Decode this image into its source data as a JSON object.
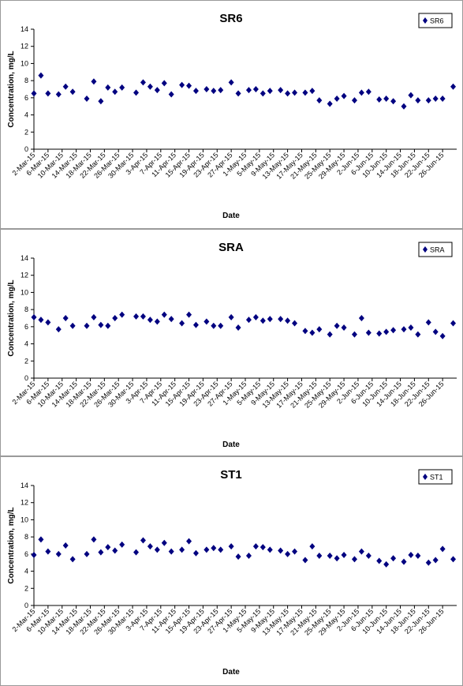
{
  "chart_data": [
    {
      "type": "scatter",
      "title": "SR6",
      "xlabel": "Date",
      "ylabel": "Concentration, mg/L",
      "ylim": [
        0,
        14
      ],
      "yticks": [
        "0",
        "2",
        "4",
        "6",
        "8",
        "10",
        "12",
        "14"
      ],
      "legend_position": "top-right",
      "color": "#000080",
      "grid": false,
      "series": [
        {
          "name": "SR6",
          "x": [
            "2015-03-02",
            "2015-03-04",
            "2015-03-06",
            "2015-03-09",
            "2015-03-11",
            "2015-03-13",
            "2015-03-17",
            "2015-03-19",
            "2015-03-21",
            "2015-03-23",
            "2015-03-25",
            "2015-03-27",
            "2015-03-31",
            "2015-04-02",
            "2015-04-04",
            "2015-04-06",
            "2015-04-08",
            "2015-04-10",
            "2015-04-13",
            "2015-04-15",
            "2015-04-17",
            "2015-04-20",
            "2015-04-22",
            "2015-04-24",
            "2015-04-27",
            "2015-04-29",
            "2015-05-02",
            "2015-05-04",
            "2015-05-06",
            "2015-05-08",
            "2015-05-11",
            "2015-05-13",
            "2015-05-15",
            "2015-05-18",
            "2015-05-20",
            "2015-05-22",
            "2015-05-25",
            "2015-05-27",
            "2015-05-29",
            "2015-06-01",
            "2015-06-03",
            "2015-06-05",
            "2015-06-08",
            "2015-06-10",
            "2015-06-12",
            "2015-06-15",
            "2015-06-17",
            "2015-06-19",
            "2015-06-22",
            "2015-06-24",
            "2015-06-26",
            "2015-06-29"
          ],
          "y": [
            6.5,
            8.6,
            6.5,
            6.4,
            7.3,
            6.7,
            5.9,
            7.9,
            5.6,
            7.2,
            6.7,
            7.2,
            6.6,
            7.8,
            7.3,
            6.9,
            7.7,
            6.4,
            7.5,
            7.4,
            6.8,
            7.0,
            6.8,
            6.9,
            7.8,
            6.5,
            6.9,
            7.0,
            6.5,
            6.8,
            6.9,
            6.5,
            6.6,
            6.6,
            6.8,
            5.7,
            5.3,
            5.9,
            6.2,
            5.7,
            6.6,
            6.7,
            5.8,
            5.9,
            5.6,
            5.0,
            6.3,
            5.7,
            5.7,
            5.9,
            5.9,
            7.3
          ]
        }
      ]
    },
    {
      "type": "scatter",
      "title": "SRA",
      "xlabel": "Date",
      "ylabel": "Concentration, mg/L",
      "ylim": [
        0,
        14
      ],
      "yticks": [
        "0",
        "2",
        "4",
        "6",
        "8",
        "10",
        "12",
        "14"
      ],
      "legend_position": "top-right",
      "color": "#000080",
      "grid": false,
      "series": [
        {
          "name": "SRA",
          "x": [
            "2015-03-02",
            "2015-03-04",
            "2015-03-06",
            "2015-03-09",
            "2015-03-11",
            "2015-03-13",
            "2015-03-17",
            "2015-03-19",
            "2015-03-21",
            "2015-03-23",
            "2015-03-25",
            "2015-03-27",
            "2015-03-31",
            "2015-04-02",
            "2015-04-04",
            "2015-04-06",
            "2015-04-08",
            "2015-04-10",
            "2015-04-13",
            "2015-04-15",
            "2015-04-17",
            "2015-04-20",
            "2015-04-22",
            "2015-04-24",
            "2015-04-27",
            "2015-04-29",
            "2015-05-02",
            "2015-05-04",
            "2015-05-06",
            "2015-05-08",
            "2015-05-11",
            "2015-05-13",
            "2015-05-15",
            "2015-05-18",
            "2015-05-20",
            "2015-05-22",
            "2015-05-25",
            "2015-05-27",
            "2015-05-29",
            "2015-06-01",
            "2015-06-03",
            "2015-06-05",
            "2015-06-08",
            "2015-06-10",
            "2015-06-12",
            "2015-06-15",
            "2015-06-17",
            "2015-06-19",
            "2015-06-22",
            "2015-06-24",
            "2015-06-26",
            "2015-06-29"
          ],
          "y": [
            7.1,
            6.8,
            6.5,
            5.7,
            7.0,
            6.1,
            6.1,
            7.1,
            6.2,
            6.1,
            7.0,
            7.4,
            7.2,
            7.2,
            6.8,
            6.6,
            7.4,
            6.9,
            6.4,
            7.4,
            6.2,
            6.6,
            6.1,
            6.1,
            7.1,
            5.9,
            6.8,
            7.1,
            6.7,
            6.9,
            6.9,
            6.7,
            6.4,
            5.5,
            5.3,
            5.7,
            5.1,
            6.1,
            5.9,
            5.1,
            7.0,
            5.3,
            5.2,
            5.4,
            5.6,
            5.7,
            5.9,
            5.1,
            6.5,
            5.4,
            4.9,
            6.4
          ]
        }
      ]
    },
    {
      "type": "scatter",
      "title": "ST1",
      "xlabel": "Date",
      "ylabel": "Concentration, mg/L",
      "ylim": [
        0,
        14
      ],
      "yticks": [
        "0",
        "2",
        "4",
        "6",
        "8",
        "10",
        "12",
        "14"
      ],
      "legend_position": "top-right",
      "color": "#000080",
      "grid": false,
      "series": [
        {
          "name": "ST1",
          "x": [
            "2015-03-02",
            "2015-03-04",
            "2015-03-06",
            "2015-03-09",
            "2015-03-11",
            "2015-03-13",
            "2015-03-17",
            "2015-03-19",
            "2015-03-21",
            "2015-03-23",
            "2015-03-25",
            "2015-03-27",
            "2015-03-31",
            "2015-04-02",
            "2015-04-04",
            "2015-04-06",
            "2015-04-08",
            "2015-04-10",
            "2015-04-13",
            "2015-04-15",
            "2015-04-17",
            "2015-04-20",
            "2015-04-22",
            "2015-04-24",
            "2015-04-27",
            "2015-04-29",
            "2015-05-02",
            "2015-05-04",
            "2015-05-06",
            "2015-05-08",
            "2015-05-11",
            "2015-05-13",
            "2015-05-15",
            "2015-05-18",
            "2015-05-20",
            "2015-05-22",
            "2015-05-25",
            "2015-05-27",
            "2015-05-29",
            "2015-06-01",
            "2015-06-03",
            "2015-06-05",
            "2015-06-08",
            "2015-06-10",
            "2015-06-12",
            "2015-06-15",
            "2015-06-17",
            "2015-06-19",
            "2015-06-22",
            "2015-06-24",
            "2015-06-26",
            "2015-06-29"
          ],
          "y": [
            5.9,
            7.7,
            6.3,
            6.0,
            7.0,
            5.4,
            6.0,
            7.7,
            6.2,
            6.8,
            6.4,
            7.1,
            6.2,
            7.6,
            6.9,
            6.5,
            7.3,
            6.3,
            6.5,
            7.5,
            6.1,
            6.5,
            6.7,
            6.5,
            6.9,
            5.7,
            5.8,
            6.9,
            6.8,
            6.5,
            6.4,
            6.0,
            6.3,
            5.3,
            6.9,
            5.8,
            5.8,
            5.5,
            5.9,
            5.4,
            6.3,
            5.8,
            5.2,
            4.8,
            5.5,
            5.1,
            5.9,
            5.8,
            5.0,
            5.3,
            6.6,
            5.4
          ]
        }
      ]
    }
  ],
  "x_tick_labels": [
    "2-Mar-15",
    "6-Mar-15",
    "10-Mar-15",
    "14-Mar-15",
    "18-Mar-15",
    "22-Mar-15",
    "26-Mar-15",
    "30-Mar-15",
    "3-Apr-15",
    "7-Apr-15",
    "11-Apr-15",
    "15-Apr-15",
    "19-Apr-15",
    "23-Apr-15",
    "27-Apr-15",
    "1-May-15",
    "5-May-15",
    "9-May-15",
    "13-May-15",
    "17-May-15",
    "21-May-15",
    "25-May-15",
    "29-May-15",
    "2-Jun-15",
    "6-Jun-15",
    "10-Jun-15",
    "14-Jun-15",
    "18-Jun-15",
    "22-Jun-15",
    "26-Jun-15"
  ],
  "x_tick_dates": [
    "2015-03-02",
    "2015-03-06",
    "2015-03-10",
    "2015-03-14",
    "2015-03-18",
    "2015-03-22",
    "2015-03-26",
    "2015-03-30",
    "2015-04-03",
    "2015-04-07",
    "2015-04-11",
    "2015-04-15",
    "2015-04-19",
    "2015-04-23",
    "2015-04-27",
    "2015-05-01",
    "2015-05-05",
    "2015-05-09",
    "2015-05-13",
    "2015-05-17",
    "2015-05-21",
    "2015-05-25",
    "2015-05-29",
    "2015-06-02",
    "2015-06-06",
    "2015-06-10",
    "2015-06-14",
    "2015-06-18",
    "2015-06-22",
    "2015-06-26"
  ],
  "xlim": [
    "2015-03-02",
    "2015-06-30"
  ]
}
